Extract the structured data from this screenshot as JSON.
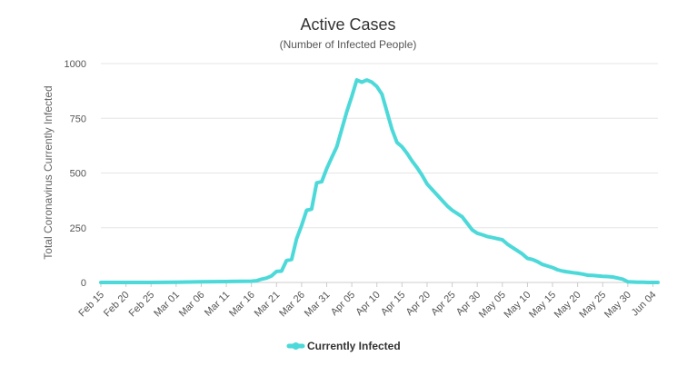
{
  "chart_data": {
    "type": "line",
    "title": "Active Cases",
    "subtitle": "(Number of Infected People)",
    "ylabel": "Total Coronavirus Currently Infected",
    "xlabel": "",
    "ylim": [
      0,
      1000
    ],
    "yticks": [
      0,
      250,
      500,
      750,
      1000
    ],
    "grid": true,
    "legend_position": "bottom",
    "x_tick_labels": [
      "Feb 15",
      "Feb 20",
      "Feb 25",
      "Mar 01",
      "Mar 06",
      "Mar 11",
      "Mar 16",
      "Mar 21",
      "Mar 26",
      "Mar 31",
      "Apr 05",
      "Apr 10",
      "Apr 15",
      "Apr 20",
      "Apr 25",
      "Apr 30",
      "May 05",
      "May 10",
      "May 15",
      "May 20",
      "May 25",
      "May 30",
      "Jun 04"
    ],
    "series": [
      {
        "name": "Currently Infected",
        "color": "#4dd9d9",
        "points": [
          [
            "Feb 15",
            0
          ],
          [
            "Feb 20",
            0
          ],
          [
            "Feb 25",
            0
          ],
          [
            "Mar 01",
            1
          ],
          [
            "Mar 06",
            3
          ],
          [
            "Mar 11",
            4
          ],
          [
            "Mar 16",
            6
          ],
          [
            "Mar 17",
            8
          ],
          [
            "Mar 18",
            15
          ],
          [
            "Mar 19",
            20
          ],
          [
            "Mar 20",
            30
          ],
          [
            "Mar 21",
            50
          ],
          [
            "Mar 22",
            52
          ],
          [
            "Mar 23",
            100
          ],
          [
            "Mar 24",
            105
          ],
          [
            "Mar 25",
            200
          ],
          [
            "Mar 26",
            260
          ],
          [
            "Mar 27",
            330
          ],
          [
            "Mar 28",
            335
          ],
          [
            "Mar 29",
            455
          ],
          [
            "Mar 30",
            460
          ],
          [
            "Mar 31",
            520
          ],
          [
            "Apr 01",
            570
          ],
          [
            "Apr 02",
            620
          ],
          [
            "Apr 03",
            700
          ],
          [
            "Apr 04",
            780
          ],
          [
            "Apr 05",
            850
          ],
          [
            "Apr 06",
            925
          ],
          [
            "Apr 07",
            915
          ],
          [
            "Apr 08",
            925
          ],
          [
            "Apr 09",
            915
          ],
          [
            "Apr 10",
            895
          ],
          [
            "Apr 11",
            860
          ],
          [
            "Apr 12",
            780
          ],
          [
            "Apr 13",
            700
          ],
          [
            "Apr 14",
            640
          ],
          [
            "Apr 15",
            620
          ],
          [
            "Apr 16",
            590
          ],
          [
            "Apr 17",
            555
          ],
          [
            "Apr 18",
            525
          ],
          [
            "Apr 19",
            490
          ],
          [
            "Apr 20",
            450
          ],
          [
            "Apr 21",
            425
          ],
          [
            "Apr 22",
            400
          ],
          [
            "Apr 23",
            375
          ],
          [
            "Apr 24",
            350
          ],
          [
            "Apr 25",
            330
          ],
          [
            "Apr 26",
            315
          ],
          [
            "Apr 27",
            300
          ],
          [
            "Apr 28",
            270
          ],
          [
            "Apr 29",
            240
          ],
          [
            "Apr 30",
            225
          ],
          [
            "May 01",
            218
          ],
          [
            "May 02",
            210
          ],
          [
            "May 03",
            205
          ],
          [
            "May 04",
            200
          ],
          [
            "May 05",
            195
          ],
          [
            "May 06",
            175
          ],
          [
            "May 07",
            160
          ],
          [
            "May 08",
            145
          ],
          [
            "May 09",
            130
          ],
          [
            "May 10",
            110
          ],
          [
            "May 11",
            105
          ],
          [
            "May 12",
            95
          ],
          [
            "May 13",
            82
          ],
          [
            "May 14",
            75
          ],
          [
            "May 15",
            68
          ],
          [
            "May 16",
            58
          ],
          [
            "May 17",
            52
          ],
          [
            "May 18",
            48
          ],
          [
            "May 19",
            45
          ],
          [
            "May 20",
            42
          ],
          [
            "May 21",
            38
          ],
          [
            "May 22",
            33
          ],
          [
            "May 23",
            32
          ],
          [
            "May 24",
            30
          ],
          [
            "May 25",
            28
          ],
          [
            "May 26",
            27
          ],
          [
            "May 27",
            25
          ],
          [
            "May 28",
            20
          ],
          [
            "May 29",
            15
          ],
          [
            "May 30",
            3
          ],
          [
            "May 31",
            2
          ],
          [
            "Jun 01",
            1
          ],
          [
            "Jun 02",
            1
          ],
          [
            "Jun 03",
            0
          ],
          [
            "Jun 04",
            0
          ],
          [
            "Jun 05",
            0
          ]
        ]
      }
    ]
  }
}
